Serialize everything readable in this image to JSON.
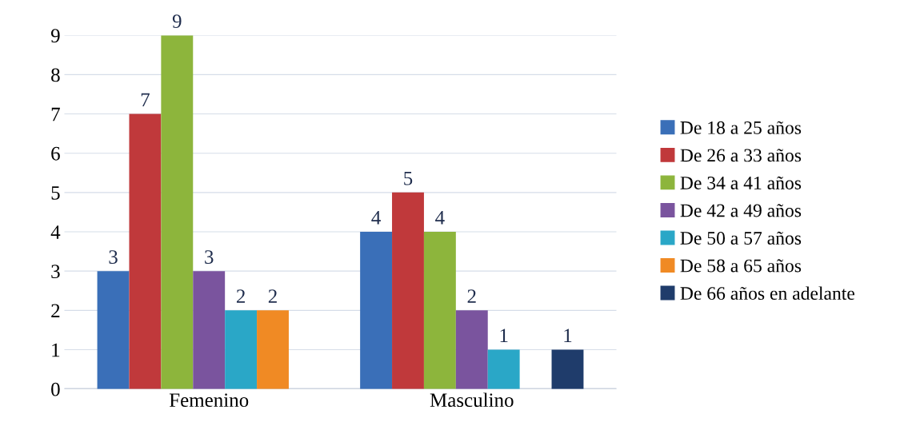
{
  "chart_data": {
    "type": "bar",
    "categories": [
      "Femenino",
      "Masculino"
    ],
    "series": [
      {
        "name": "De 18 a 25 años",
        "color": "#3a6fb8",
        "values": [
          3,
          4
        ]
      },
      {
        "name": "De 26 a 33 años",
        "color": "#c0393b",
        "values": [
          7,
          5
        ]
      },
      {
        "name": "De 34 a 41 años",
        "color": "#8db53c",
        "values": [
          9,
          4
        ]
      },
      {
        "name": "De 42 a 49 años",
        "color": "#7a549e",
        "values": [
          3,
          2
        ]
      },
      {
        "name": "De 50 a 57 años",
        "color": "#2aa7c7",
        "values": [
          2,
          1
        ]
      },
      {
        "name": "De 58 a 65 años",
        "color": "#f08a24",
        "values": [
          2,
          null
        ]
      },
      {
        "name": "De 66 años en adelante",
        "color": "#1f3c6b",
        "values": [
          null,
          1
        ]
      }
    ],
    "ylim": [
      0,
      9
    ],
    "yticks": [
      0,
      1,
      2,
      3,
      4,
      5,
      6,
      7,
      8,
      9
    ],
    "grid": "y",
    "legend": "right",
    "data_labels": true
  }
}
